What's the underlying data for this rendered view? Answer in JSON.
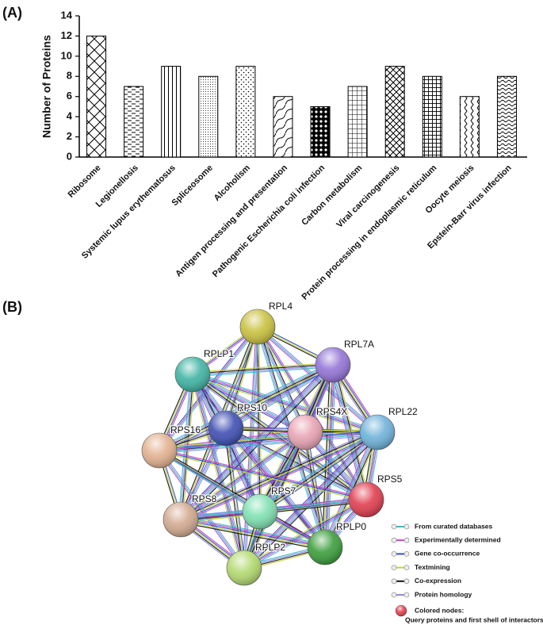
{
  "panel_a_label": "(A)",
  "chart_data": {
    "type": "bar",
    "y_label": "Number of Proteins",
    "categories": [
      "Ribosome",
      "Legionellosis",
      "Systemic lupus erythematosus",
      "Spliceosome",
      "Alcoholism",
      "Antigen processing and presentation",
      "Pathogenic Escherichia coli infection",
      "Carbon metabolism",
      "Viral carcinogenesis",
      "Protein processing in endoplasmic reticulum",
      "Oocyte meiosis",
      "Epstein-Barr virus infection"
    ],
    "values": [
      12,
      7,
      9,
      8,
      9,
      6,
      5,
      7,
      9,
      8,
      6,
      8
    ],
    "patterns": [
      "diagcross",
      "hdash",
      "vert",
      "dots-dense",
      "dots",
      "wave-diag",
      "balls",
      "grid",
      "diagcross-small",
      "grid-bold",
      "zigzag",
      "wave"
    ],
    "ylim": [
      0,
      14
    ],
    "yticks": [
      0,
      2,
      4,
      6,
      8,
      10,
      12,
      14
    ],
    "grid": false
  },
  "panel_b": {
    "label": "(B)",
    "nodes": [
      {
        "label": "RPL4",
        "color": "#c9c13f"
      },
      {
        "label": "RPLP1",
        "color": "#3fb3a3"
      },
      {
        "label": "RPL7A",
        "color": "#9474d6"
      },
      {
        "label": "RPS10",
        "color": "#3f4fb3"
      },
      {
        "label": "RPS4X",
        "color": "#e8a3b3"
      },
      {
        "label": "RPL22",
        "color": "#6fb2da"
      },
      {
        "label": "RPS16",
        "color": "#e2b18f"
      },
      {
        "label": "RPS5",
        "color": "#e03e4f"
      },
      {
        "label": "RPS8",
        "color": "#d2a98f"
      },
      {
        "label": "RPS7",
        "color": "#7fe0b2"
      },
      {
        "label": "RPLP0",
        "color": "#3c9e3c"
      },
      {
        "label": "RPLP2",
        "color": "#b2d96f"
      }
    ],
    "legend": [
      {
        "label": "From curated databases",
        "color": "#36b9cc"
      },
      {
        "label": "Experimentally determined",
        "color": "#c23fc2"
      },
      {
        "label": "Gene co-occurrence",
        "color": "#2f4fc0"
      },
      {
        "label": "Textmining",
        "color": "#c9d33c"
      },
      {
        "label": "Co-expression",
        "color": "#111111"
      },
      {
        "label": "Protein homology",
        "color": "#8a8ae0"
      }
    ],
    "colored_nodes_title": "Colored nodes:",
    "colored_nodes_text": "Query proteins and first shell of interactors"
  }
}
